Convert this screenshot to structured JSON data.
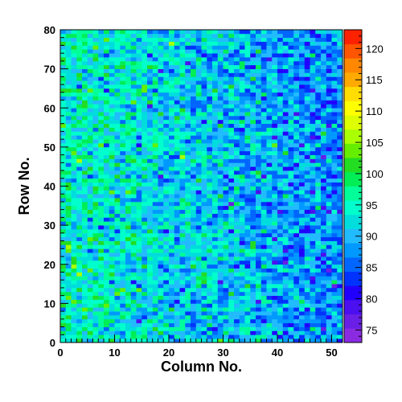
{
  "chart_data": {
    "type": "heatmap",
    "title": "",
    "xlabel": "Column No.",
    "ylabel": "Row No.",
    "xlim": [
      0,
      52
    ],
    "ylim": [
      0,
      80
    ],
    "n_columns": 52,
    "n_rows": 80,
    "x_ticks": [
      "0",
      "10",
      "20",
      "30",
      "40",
      "50"
    ],
    "y_ticks": [
      "0",
      "10",
      "20",
      "30",
      "40",
      "50",
      "60",
      "70",
      "80"
    ],
    "colorbar": {
      "range": [
        73,
        123
      ],
      "ticks": [
        "75",
        "80",
        "85",
        "90",
        "95",
        "100",
        "105",
        "110",
        "115",
        "120"
      ],
      "colors": [
        "#8a2be2",
        "#6a1fe6",
        "#4b0ff0",
        "#2200ff",
        "#0033ff",
        "#0066ff",
        "#0099ff",
        "#22bbff",
        "#00dddd",
        "#00ffcc",
        "#00ff99",
        "#00ee55",
        "#22dd22",
        "#66ee00",
        "#aaff00",
        "#ddff00",
        "#ffff00",
        "#ffdd00",
        "#ffaa00",
        "#ff8800",
        "#ff5500",
        "#ff2200"
      ]
    },
    "value_model": {
      "description": "Cell intensity decreases with column number: about 95 at column 0 to about 87 at column 52, with random noise of about ±5.",
      "mean_at_first_column": 95,
      "mean_at_last_column": 87,
      "noise_sd": 4.2
    }
  }
}
